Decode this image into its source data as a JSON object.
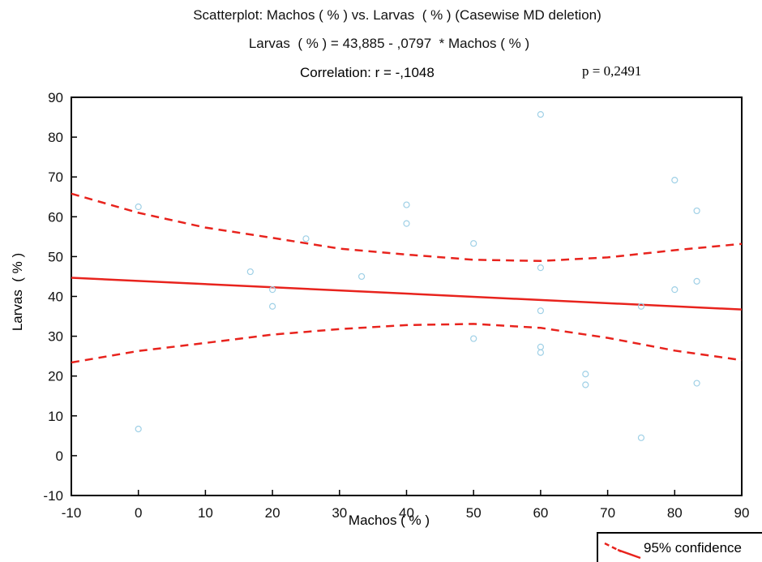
{
  "chart_data": {
    "type": "scatter",
    "title": "Scatterplot: Machos ( % ) vs. Larvas  ( % ) (Casewise MD deletion)",
    "equation": "Larvas  ( % ) = 43,885 - ,0797  * Machos ( % )",
    "correlation": "Correlation: r = -,1048",
    "p_value": "p = 0,2491",
    "xlabel": "Machos ( % )",
    "ylabel": "Larvas  ( % )",
    "xlim": [
      -10,
      90
    ],
    "ylim": [
      -10,
      90
    ],
    "x_ticks": [
      -10,
      0,
      10,
      20,
      30,
      40,
      50,
      60,
      70,
      80,
      90
    ],
    "y_ticks": [
      -10,
      0,
      10,
      20,
      30,
      40,
      50,
      60,
      70,
      80,
      90
    ],
    "grid": false,
    "legend": {
      "placement": "bottom-right",
      "label": "95% confidence"
    },
    "regression": {
      "intercept": 43.885,
      "slope": -0.0797
    },
    "confidence_band": {
      "x": [
        -10,
        0,
        10,
        20,
        30,
        40,
        50,
        60,
        70,
        80,
        90
      ],
      "upper": [
        65.8,
        61.0,
        57.3,
        54.7,
        52.0,
        50.5,
        49.2,
        48.9,
        49.8,
        51.6,
        53.2
      ],
      "lower": [
        23.4,
        26.3,
        28.3,
        30.4,
        31.8,
        32.8,
        33.1,
        32.1,
        29.6,
        26.4,
        24.0
      ]
    },
    "series": [
      {
        "color": "#9fd0e6",
        "x": [
          0,
          0,
          16.7,
          20,
          20,
          25,
          33.3,
          40,
          40,
          50,
          50,
          60,
          60,
          60,
          60,
          60,
          66.7,
          66.7,
          75,
          75,
          80,
          80,
          83.3,
          83.3,
          83.3
        ],
        "y": [
          62.5,
          6.7,
          46.2,
          41.7,
          37.5,
          54.5,
          45,
          63,
          58.3,
          53.3,
          29.4,
          85.7,
          47.2,
          36.4,
          27.3,
          25.9,
          20.5,
          17.8,
          37.5,
          4.5,
          69.2,
          41.7,
          61.5,
          43.8,
          18.2
        ]
      }
    ],
    "line_color": "#e8231d"
  }
}
